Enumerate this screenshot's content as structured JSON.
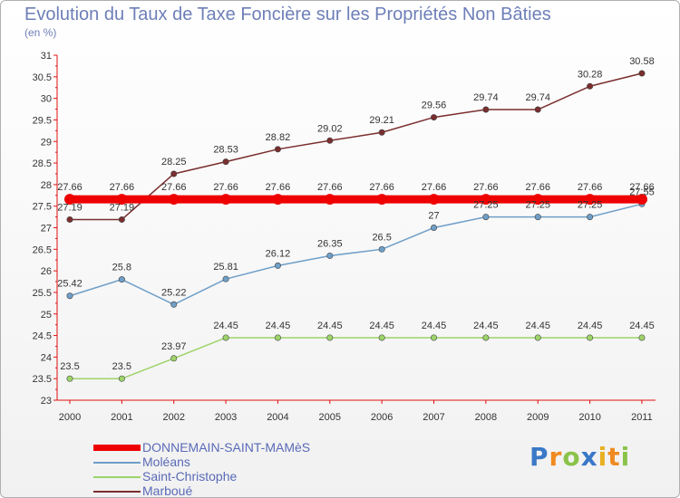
{
  "header": {
    "title": "Evolution du Taux de Taxe Foncière sur les Propriétés Non Bâties",
    "unit": "(en %)"
  },
  "logo": {
    "letters": [
      "P",
      "r",
      "o",
      "x",
      "i",
      "t",
      "i"
    ],
    "colors": [
      "#3a78c8",
      "#f08a20",
      "#8bc34a",
      "#3a78c8",
      "#e8b020",
      "#f08a20",
      "#8bc34a"
    ]
  },
  "chart_data": {
    "type": "line",
    "title": "Evolution du Taux de Taxe Foncière sur les Propriétés Non Bâties",
    "xlabel": "",
    "ylabel": "(en %)",
    "x": [
      "2000",
      "2001",
      "2002",
      "2003",
      "2004",
      "2005",
      "2006",
      "2007",
      "2008",
      "2009",
      "2010",
      "2011"
    ],
    "ylim": [
      23,
      31
    ],
    "yticks": [
      "23",
      "23.5",
      "24",
      "24.5",
      "25",
      "25.5",
      "26",
      "26.5",
      "27",
      "27.5",
      "28",
      "28.5",
      "29",
      "29.5",
      "30",
      "30.5",
      "31"
    ],
    "grid": false,
    "legend": "bottom-left",
    "series": [
      {
        "name": "DONNEMAIN-SAINT-MAMèS",
        "color": "#ee0000",
        "values": [
          27.66,
          27.66,
          27.66,
          27.66,
          27.66,
          27.66,
          27.66,
          27.66,
          27.66,
          27.66,
          27.66,
          27.66
        ],
        "labels": [
          "27.66",
          "27.66",
          "27.66",
          "27.66",
          "27.66",
          "27.66",
          "27.66",
          "27.66",
          "27.66",
          "27.66",
          "27.66",
          "27.66"
        ]
      },
      {
        "name": "Moléans",
        "color": "#6f9fc8",
        "values": [
          25.42,
          25.8,
          25.22,
          25.81,
          26.12,
          26.35,
          26.5,
          27,
          27.25,
          27.25,
          27.25,
          27.55
        ],
        "labels": [
          "25.42",
          "25.8",
          "25.22",
          "25.81",
          "26.12",
          "26.35",
          "26.5",
          "27",
          "27.25",
          "27.25",
          "27.25",
          "27.55"
        ]
      },
      {
        "name": "Saint-Christophe",
        "color": "#9ed36a",
        "values": [
          23.5,
          23.5,
          23.97,
          24.45,
          24.45,
          24.45,
          24.45,
          24.45,
          24.45,
          24.45,
          24.45,
          24.45
        ],
        "labels": [
          "23.5",
          "23.5",
          "23.97",
          "24.45",
          "24.45",
          "24.45",
          "24.45",
          "24.45",
          "24.45",
          "24.45",
          "24.45",
          "24.45"
        ]
      },
      {
        "name": "Marboué",
        "color": "#7a2e2e",
        "values": [
          27.19,
          27.19,
          28.25,
          28.53,
          28.82,
          29.02,
          29.21,
          29.56,
          29.74,
          29.74,
          30.28,
          30.58
        ],
        "labels": [
          "27.19",
          "27.19",
          "28.25",
          "28.53",
          "28.82",
          "29.02",
          "29.21",
          "29.56",
          "29.74",
          "29.74",
          "30.28",
          "30.58"
        ]
      }
    ]
  }
}
